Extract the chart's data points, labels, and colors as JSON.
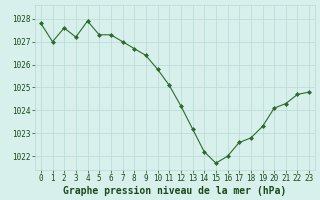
{
  "x": [
    0,
    1,
    2,
    3,
    4,
    5,
    6,
    7,
    8,
    9,
    10,
    11,
    12,
    13,
    14,
    15,
    16,
    17,
    18,
    19,
    20,
    21,
    22,
    23
  ],
  "y": [
    1027.8,
    1027.0,
    1027.6,
    1027.2,
    1027.9,
    1027.3,
    1027.3,
    1027.0,
    1026.7,
    1026.4,
    1025.8,
    1025.1,
    1024.2,
    1023.2,
    1022.2,
    1021.7,
    1022.0,
    1022.6,
    1022.8,
    1023.3,
    1024.1,
    1024.3,
    1024.7,
    1024.8
  ],
  "line_color": "#2d6a2d",
  "marker": "D",
  "marker_size": 2,
  "bg_color": "#d8f0ec",
  "grid_color": "#b8d8d4",
  "xlabel": "Graphe pression niveau de la mer (hPa)",
  "xlabel_color": "#1a4a1a",
  "xlabel_fontsize": 7.0,
  "tick_color": "#1a4a1a",
  "tick_fontsize": 5.5,
  "ylim": [
    1021.4,
    1028.6
  ],
  "yticks": [
    1022,
    1023,
    1024,
    1025,
    1026,
    1027,
    1028
  ],
  "xlim": [
    -0.5,
    23.5
  ],
  "xticks": [
    0,
    1,
    2,
    3,
    4,
    5,
    6,
    7,
    8,
    9,
    10,
    11,
    12,
    13,
    14,
    15,
    16,
    17,
    18,
    19,
    20,
    21,
    22,
    23
  ]
}
